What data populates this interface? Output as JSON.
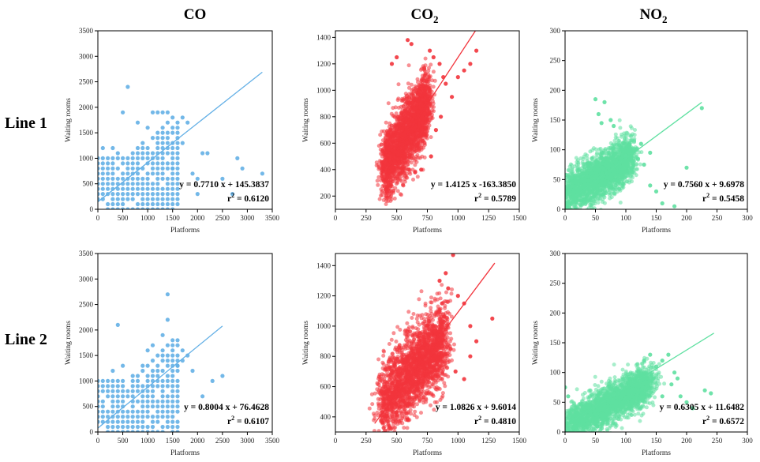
{
  "figure": {
    "column_titles": [
      {
        "main": "CO",
        "sub": ""
      },
      {
        "main": "CO",
        "sub": "2"
      },
      {
        "main": "NO",
        "sub": "2"
      }
    ],
    "row_labels": [
      "Line 1",
      "Line 2"
    ],
    "colors": {
      "CO": "#64b0e6",
      "CO2": "#f2343c",
      "NO2": "#5fe0a1"
    }
  },
  "chart_data": [
    {
      "id": "line1-co",
      "type": "scatter",
      "row_label": "Line 1",
      "title": "CO",
      "xlabel": "Platforms",
      "ylabel": "Waiting rooms",
      "xlim": [
        0,
        3500
      ],
      "ylim": [
        0,
        3500
      ],
      "xticks": [
        0,
        500,
        1000,
        1500,
        2000,
        2500,
        3000,
        3500
      ],
      "yticks": [
        0,
        500,
        1000,
        1500,
        2000,
        2500,
        3000,
        3500
      ],
      "color": "#64b0e6",
      "fit": {
        "slope": 0.771,
        "intercept": 145.3837,
        "x_range": [
          0,
          3300
        ]
      },
      "equation": "y = 0.7710 x + 145.3837",
      "r2_label": "r",
      "r2_value": " = 0.6120",
      "scatter_kind": "grid",
      "grid_step": 100,
      "grid_x_max": 1600,
      "grid_y_max": 1000,
      "outliers": [
        [
          600,
          2400
        ],
        [
          500,
          1900
        ],
        [
          1100,
          1900
        ],
        [
          1200,
          1900
        ],
        [
          1300,
          1900
        ],
        [
          1400,
          1900
        ],
        [
          1500,
          1800
        ],
        [
          1700,
          1800
        ],
        [
          1800,
          1700
        ],
        [
          2100,
          1100
        ],
        [
          2200,
          1100
        ],
        [
          1500,
          800
        ],
        [
          1900,
          700
        ],
        [
          2000,
          600
        ],
        [
          2500,
          600
        ],
        [
          2700,
          300
        ],
        [
          2800,
          1000
        ],
        [
          2900,
          800
        ],
        [
          3300,
          700
        ],
        [
          2000,
          300
        ],
        [
          400,
          1100
        ],
        [
          300,
          1200
        ],
        [
          100,
          1200
        ],
        [
          1700,
          1300
        ],
        [
          800,
          1700
        ],
        [
          1000,
          1600
        ]
      ]
    },
    {
      "id": "line1-co2",
      "type": "scatter",
      "row_label": "Line 1",
      "title": "CO2",
      "xlabel": "Platforms",
      "ylabel": "Waiting rooms",
      "xlim": [
        0,
        1500
      ],
      "ylim": [
        100,
        1450
      ],
      "xticks": [
        0,
        250,
        500,
        750,
        1000,
        1250,
        1500
      ],
      "yticks": [
        200,
        400,
        600,
        800,
        1000,
        1200,
        1400
      ],
      "color": "#f2343c",
      "fit": {
        "slope": 1.4125,
        "intercept": -163.385,
        "x_range": [
          370,
          1150
        ]
      },
      "equation": "y = 1.4125 x -163.3850",
      "r2_label": "r",
      "r2_value": " = 0.5789",
      "scatter_kind": "cloud",
      "cloud": {
        "x_min": 380,
        "x_max": 760,
        "y_center": 650,
        "y_spread": 240,
        "corr": 1.35
      },
      "outliers": [
        [
          590,
          1380
        ],
        [
          620,
          1350
        ],
        [
          770,
          1300
        ],
        [
          800,
          1250
        ],
        [
          850,
          1200
        ],
        [
          1000,
          1100
        ],
        [
          1150,
          1300
        ],
        [
          1100,
          1200
        ],
        [
          900,
          1050
        ],
        [
          950,
          950
        ],
        [
          860,
          800
        ],
        [
          820,
          700
        ],
        [
          700,
          400
        ],
        [
          650,
          380
        ],
        [
          780,
          500
        ],
        [
          1050,
          1150
        ],
        [
          880,
          1100
        ],
        [
          410,
          250
        ],
        [
          420,
          230
        ],
        [
          460,
          1200
        ],
        [
          500,
          1250
        ]
      ]
    },
    {
      "id": "line1-no2",
      "type": "scatter",
      "row_label": "Line 1",
      "title": "NO2",
      "xlabel": "Platforms",
      "ylabel": "Waiting rooms",
      "xlim": [
        0,
        300
      ],
      "ylim": [
        0,
        300
      ],
      "xticks": [
        0,
        50,
        100,
        150,
        200,
        250,
        300
      ],
      "yticks": [
        0,
        50,
        100,
        150,
        200,
        250,
        300
      ],
      "color": "#5fe0a1",
      "fit": {
        "slope": 0.756,
        "intercept": 9.6978,
        "x_range": [
          0,
          225
        ]
      },
      "equation": "y = 0.7560 x + 9.6978",
      "r2_label": "r",
      "r2_value": " = 0.5458",
      "scatter_kind": "cloud",
      "cloud": {
        "x_min": 0,
        "x_max": 110,
        "y_center": 55,
        "y_spread": 35,
        "corr": 0.6
      },
      "outliers": [
        [
          50,
          185
        ],
        [
          65,
          180
        ],
        [
          55,
          160
        ],
        [
          75,
          150
        ],
        [
          80,
          140
        ],
        [
          60,
          145
        ],
        [
          100,
          90
        ],
        [
          110,
          80
        ],
        [
          120,
          85
        ],
        [
          130,
          75
        ],
        [
          140,
          40
        ],
        [
          150,
          30
        ],
        [
          160,
          10
        ],
        [
          180,
          5
        ],
        [
          200,
          70
        ],
        [
          225,
          170
        ],
        [
          125,
          110
        ],
        [
          140,
          95
        ]
      ]
    },
    {
      "id": "line2-co",
      "type": "scatter",
      "row_label": "Line 2",
      "title": "CO",
      "xlabel": "Platforms",
      "ylabel": "Waiting rooms",
      "xlim": [
        0,
        3500
      ],
      "ylim": [
        0,
        3500
      ],
      "xticks": [
        0,
        500,
        1000,
        1500,
        2000,
        2500,
        3000,
        3500
      ],
      "yticks": [
        0,
        500,
        1000,
        1500,
        2000,
        2500,
        3000,
        3500
      ],
      "color": "#64b0e6",
      "fit": {
        "slope": 0.8004,
        "intercept": 76.4628,
        "x_range": [
          0,
          2500
        ]
      },
      "equation": "y = 0.8004 x + 76.4628",
      "r2_label": "r",
      "r2_value": " = 0.6107",
      "scatter_kind": "grid",
      "grid_step": 100,
      "grid_x_max": 1600,
      "grid_y_max": 1000,
      "outliers": [
        [
          1400,
          2700
        ],
        [
          400,
          2100
        ],
        [
          1400,
          2200
        ],
        [
          1300,
          1900
        ],
        [
          1500,
          1800
        ],
        [
          1600,
          1800
        ],
        [
          1700,
          1600
        ],
        [
          1800,
          1500
        ],
        [
          1900,
          1200
        ],
        [
          2100,
          700
        ],
        [
          2300,
          1000
        ],
        [
          2500,
          1100
        ],
        [
          1600,
          1300
        ],
        [
          1700,
          1400
        ],
        [
          500,
          1300
        ],
        [
          1000,
          1600
        ],
        [
          1100,
          1700
        ],
        [
          300,
          1200
        ]
      ]
    },
    {
      "id": "line2-co2",
      "type": "scatter",
      "row_label": "Line 2",
      "title": "CO2",
      "xlabel": "Platforms",
      "ylabel": "Waiting rooms",
      "xlim": [
        0,
        1500
      ],
      "ylim": [
        300,
        1480
      ],
      "xticks": [
        0,
        250,
        500,
        750,
        1000,
        1250,
        1500
      ],
      "yticks": [
        400,
        600,
        800,
        1000,
        1200,
        1400
      ],
      "color": "#f2343c",
      "fit": {
        "slope": 1.0826,
        "intercept": 9.6014,
        "x_range": [
          320,
          1300
        ]
      },
      "equation": "y = 1.0826 x + 9.6014",
      "r2_label": "r",
      "r2_value": " = 0.4810",
      "scatter_kind": "cloud",
      "cloud": {
        "x_min": 360,
        "x_max": 900,
        "y_center": 700,
        "y_spread": 240,
        "corr": 0.8
      },
      "outliers": [
        [
          960,
          1470
        ],
        [
          900,
          1350
        ],
        [
          850,
          1300
        ],
        [
          920,
          1250
        ],
        [
          1000,
          1200
        ],
        [
          1050,
          1150
        ],
        [
          1100,
          1000
        ],
        [
          1150,
          900
        ],
        [
          1280,
          1050
        ],
        [
          1100,
          800
        ],
        [
          980,
          700
        ],
        [
          1050,
          650
        ],
        [
          940,
          850
        ],
        [
          870,
          1150
        ]
      ]
    },
    {
      "id": "line2-no2",
      "type": "scatter",
      "row_label": "Line 2",
      "title": "NO2",
      "xlabel": "Platforms",
      "ylabel": "Waiting rooms",
      "xlim": [
        0,
        300
      ],
      "ylim": [
        0,
        300
      ],
      "xticks": [
        0,
        50,
        100,
        150,
        200,
        250,
        300
      ],
      "yticks": [
        0,
        50,
        100,
        150,
        200,
        250,
        300
      ],
      "color": "#5fe0a1",
      "fit": {
        "slope": 0.6305,
        "intercept": 11.6482,
        "x_range": [
          0,
          245
        ]
      },
      "equation": "y = 0.6305 x + 11.6482",
      "r2_label": "r",
      "r2_value": " = 0.6572",
      "scatter_kind": "cloud",
      "cloud": {
        "x_min": 0,
        "x_max": 140,
        "y_center": 45,
        "y_spread": 30,
        "corr": 0.55
      },
      "outliers": [
        [
          170,
          130
        ],
        [
          160,
          120
        ],
        [
          150,
          110
        ],
        [
          180,
          100
        ],
        [
          175,
          80
        ],
        [
          190,
          60
        ],
        [
          200,
          50
        ],
        [
          210,
          40
        ],
        [
          230,
          70
        ],
        [
          240,
          65
        ],
        [
          0,
          75
        ],
        [
          5,
          60
        ],
        [
          160,
          60
        ],
        [
          185,
          90
        ],
        [
          140,
          130
        ],
        [
          130,
          120
        ]
      ]
    }
  ]
}
